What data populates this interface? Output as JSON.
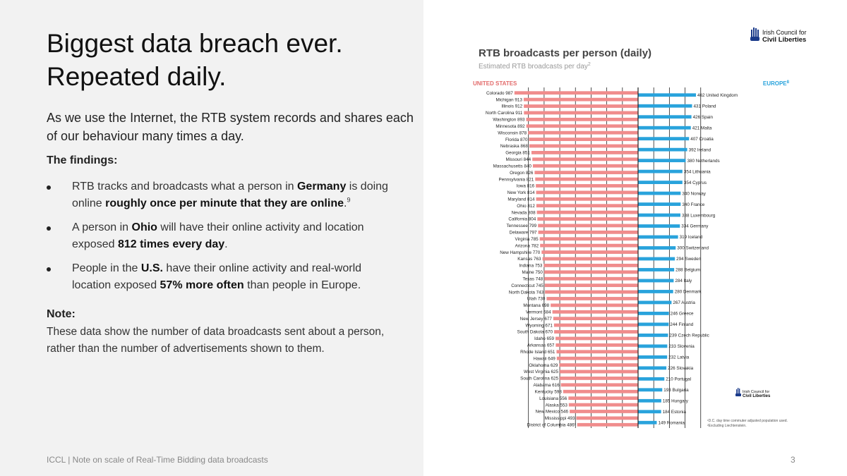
{
  "slide": {
    "headline_line1": "Biggest data breach ever.",
    "headline_line2": "Repeated daily.",
    "intro": "As we use the Internet, the RTB system records and shares each of our behaviour many times a day.",
    "findings_title": "The findings:",
    "bullet1": {
      "a": "RTB tracks and broadcasts what a person in ",
      "b": "Germany",
      "c": " is doing online ",
      "d": "roughly once per minute that they are online",
      "e": ".",
      "sup": "9"
    },
    "bullet2": {
      "a": "A person in ",
      "b": "Ohio",
      "c": " will have their online activity and location exposed ",
      "d": "812 times every day",
      "e": "."
    },
    "bullet3": {
      "a": "People in the ",
      "b": "U.S.",
      "c": " have their online activity and real-world location exposed ",
      "d": "57% more often",
      "e": " than people in Europe."
    },
    "note_title": "Note:",
    "note_text": "These data show the number of data broadcasts sent about a person, rather than the number of advertisements shown to them.",
    "footer": "ICCL | Note on scale of Real-Time Bidding data broadcasts",
    "page_number": "3"
  },
  "logo": {
    "line1": "Irish Council for",
    "line2": "Civil Liberties"
  },
  "chart_data": {
    "type": "bar",
    "title": "RTB broadcasts per person (daily)",
    "subtitle": "Estimated RTB broadcasts per day",
    "subtitle_sup": "2",
    "left_label": "UNITED STATES",
    "right_label": "EUROPE",
    "right_label_sup": "8",
    "footnotes": [
      "¹D.C. day time commuter adjusted population used.",
      "²Excluding Liechtenstein."
    ],
    "xlim": [
      0,
      1000
    ],
    "us_color": "#f08c8c",
    "eu_color": "#29a3dc",
    "us": [
      {
        "label": "Colorado 987",
        "value": 987
      },
      {
        "label": "Michigan 913",
        "value": 913
      },
      {
        "label": "Illinois 912",
        "value": 912
      },
      {
        "label": "North Carolina 911",
        "value": 911
      },
      {
        "label": "Washington 893",
        "value": 893
      },
      {
        "label": "Minnesota 892",
        "value": 892
      },
      {
        "label": "Wisconsin 878",
        "value": 878
      },
      {
        "label": "Florida 870",
        "value": 870
      },
      {
        "label": "Nebraska 868",
        "value": 868
      },
      {
        "label": "Georgia 851",
        "value": 851
      },
      {
        "label": "Missouri 844",
        "value": 844
      },
      {
        "label": "Massachusetts 840",
        "value": 840
      },
      {
        "label": "Oregon 826",
        "value": 826
      },
      {
        "label": "Pennsylvania 821",
        "value": 821
      },
      {
        "label": "Iowa 816",
        "value": 816
      },
      {
        "label": "New York 814",
        "value": 814
      },
      {
        "label": "Maryland 814",
        "value": 814
      },
      {
        "label": "Ohio 812",
        "value": 812
      },
      {
        "label": "Nevada 808",
        "value": 808
      },
      {
        "label": "California 804",
        "value": 804
      },
      {
        "label": "Tennessee 799",
        "value": 799
      },
      {
        "label": "Delaware 797",
        "value": 797
      },
      {
        "label": "Virginia 785",
        "value": 785
      },
      {
        "label": "Arizona 782",
        "value": 782
      },
      {
        "label": "New Hampshire 770",
        "value": 770
      },
      {
        "label": "Kansas 763",
        "value": 763
      },
      {
        "label": "Indiana 753",
        "value": 753
      },
      {
        "label": "Maine 750",
        "value": 750
      },
      {
        "label": "Texas 748",
        "value": 748
      },
      {
        "label": "Connecticut 745",
        "value": 745
      },
      {
        "label": "North Dakota 743",
        "value": 743
      },
      {
        "label": "Utah 730",
        "value": 730
      },
      {
        "label": "Montana 698",
        "value": 698
      },
      {
        "label": "Vermont 684",
        "value": 684
      },
      {
        "label": "New Jersey 677",
        "value": 677
      },
      {
        "label": "Wyoming 671",
        "value": 671
      },
      {
        "label": "South Dakota 670",
        "value": 670
      },
      {
        "label": "Idaho 659",
        "value": 659
      },
      {
        "label": "Arkansas 657",
        "value": 657
      },
      {
        "label": "Rhode Island 651",
        "value": 651
      },
      {
        "label": "Hawaii 649",
        "value": 649
      },
      {
        "label": "Oklahoma 629",
        "value": 629
      },
      {
        "label": "West Virginia 625",
        "value": 625
      },
      {
        "label": "South Carolina 625",
        "value": 625
      },
      {
        "label": "Alabama 616",
        "value": 616
      },
      {
        "label": "Kentucky 598",
        "value": 598
      },
      {
        "label": "Louisiana 556",
        "value": 556
      },
      {
        "label": "Alaska 553",
        "value": 553
      },
      {
        "label": "New Mexico 546",
        "value": 546
      },
      {
        "label": "Mississippi 493",
        "value": 493
      },
      {
        "label": "District of Columbia 486¹",
        "value": 486
      }
    ],
    "europe": [
      {
        "label": "462 United Kingdom",
        "value": 462
      },
      {
        "label": "431 Poland",
        "value": 431
      },
      {
        "label": "426 Spain",
        "value": 426
      },
      {
        "label": "421 Malta",
        "value": 421
      },
      {
        "label": "407 Croatia",
        "value": 407
      },
      {
        "label": "392 Ireland",
        "value": 392
      },
      {
        "label": "380 Netherlands",
        "value": 380
      },
      {
        "label": "354 Lithuania",
        "value": 354
      },
      {
        "label": "354 Cyprus",
        "value": 354
      },
      {
        "label": "340 Norway",
        "value": 340
      },
      {
        "label": "340 France",
        "value": 340
      },
      {
        "label": "338 Luxembourg",
        "value": 338
      },
      {
        "label": "334 Germany",
        "value": 334
      },
      {
        "label": "319 Iceland",
        "value": 319
      },
      {
        "label": "300 Switzerland",
        "value": 300
      },
      {
        "label": "294 Sweden",
        "value": 294
      },
      {
        "label": "288 Belgium",
        "value": 288
      },
      {
        "label": "284 Italy",
        "value": 284
      },
      {
        "label": "280 Denmark",
        "value": 280
      },
      {
        "label": "267 Austria",
        "value": 267
      },
      {
        "label": "246 Greece",
        "value": 246
      },
      {
        "label": "244 Finland",
        "value": 244
      },
      {
        "label": "239 Czech Republic",
        "value": 239
      },
      {
        "label": "233 Slovenia",
        "value": 233
      },
      {
        "label": "232 Latvia",
        "value": 232
      },
      {
        "label": "226 Slovakia",
        "value": 226
      },
      {
        "label": "210 Portugal",
        "value": 210
      },
      {
        "label": "193 Bulgaria",
        "value": 193
      },
      {
        "label": "185 Hungary",
        "value": 185
      },
      {
        "label": "184 Estonia",
        "value": 184
      },
      {
        "label": "149 Romania",
        "value": 149
      }
    ]
  }
}
